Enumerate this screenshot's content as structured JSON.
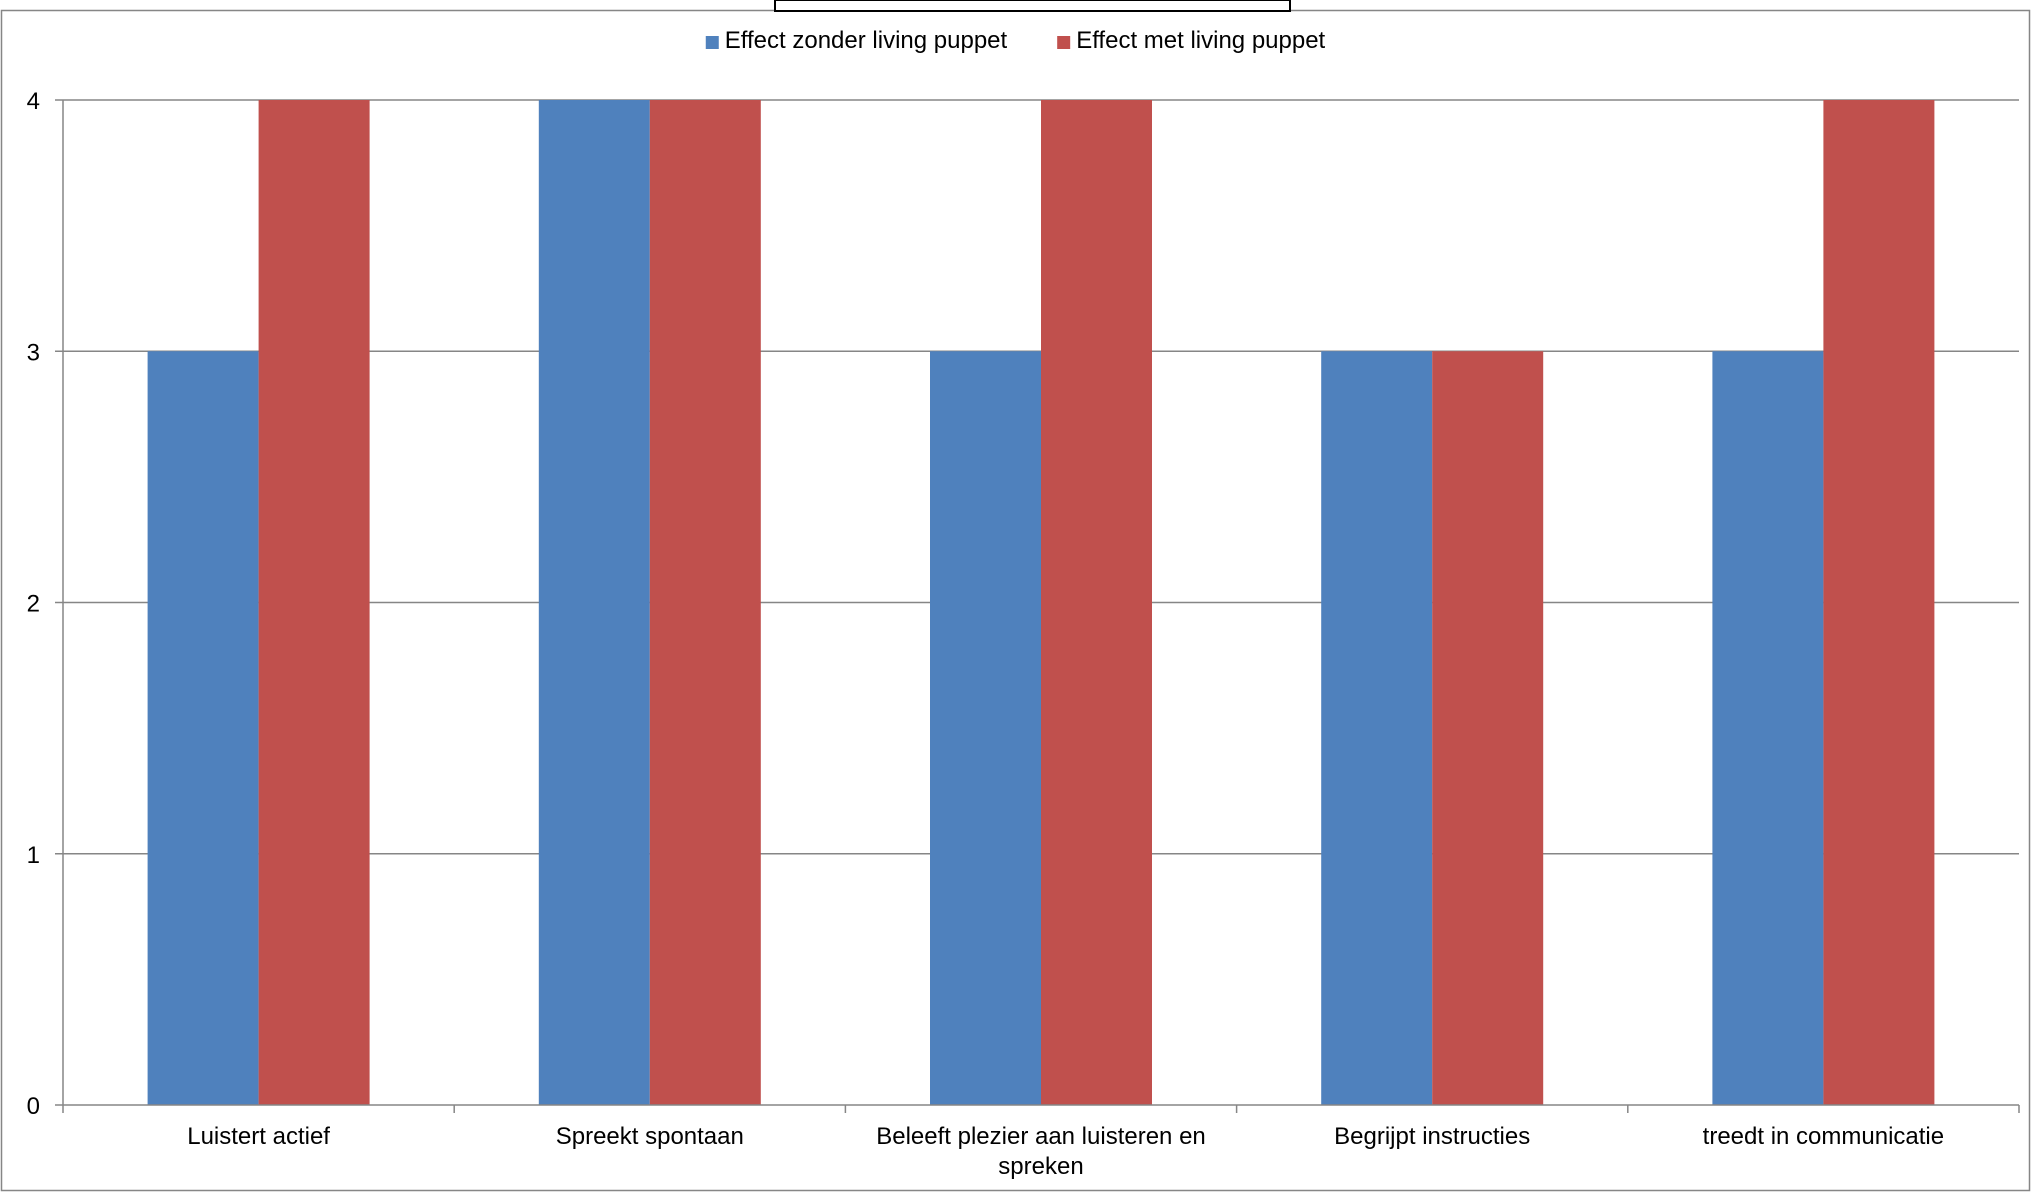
{
  "chart_data": {
    "type": "bar",
    "title": "",
    "xlabel": "",
    "ylabel": "",
    "categories": [
      [
        "Luistert actief"
      ],
      [
        "Spreekt spontaan"
      ],
      [
        "Beleeft plezier aan luisteren en",
        "spreken"
      ],
      [
        "Begrijpt instructies"
      ],
      [
        "treedt in communicatie"
      ]
    ],
    "series": [
      {
        "name": "Effect zonder living puppet",
        "color": "#4F81BD",
        "values": [
          3,
          4,
          3,
          3,
          3
        ]
      },
      {
        "name": "Effect met living puppet",
        "color": "#C0504D",
        "values": [
          4,
          4,
          4,
          3,
          4
        ]
      }
    ],
    "ylim": [
      0,
      4
    ],
    "yticks": [
      "0",
      "1",
      "2",
      "3",
      "4"
    ],
    "grid": true,
    "legend_position": "top-center"
  }
}
